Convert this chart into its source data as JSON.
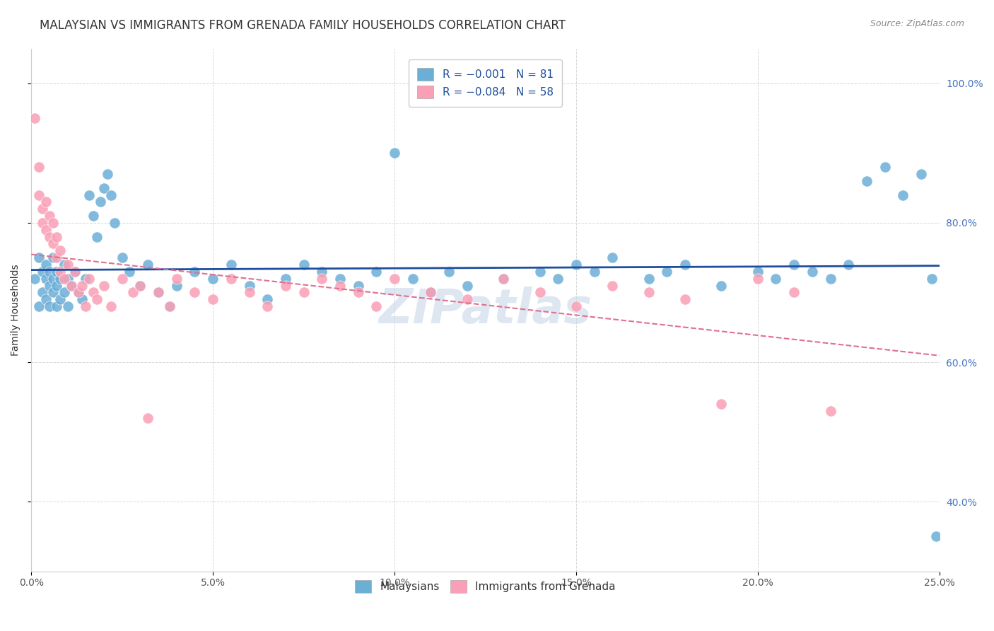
{
  "title": "MALAYSIAN VS IMMIGRANTS FROM GRENADA FAMILY HOUSEHOLDS CORRELATION CHART",
  "source": "Source: ZipAtlas.com",
  "ylabel": "Family Households",
  "xlim": [
    0.0,
    0.25
  ],
  "ylim": [
    0.3,
    1.05
  ],
  "xticks": [
    0.0,
    0.05,
    0.1,
    0.15,
    0.2,
    0.25
  ],
  "yticks": [
    0.4,
    0.6,
    0.8,
    1.0
  ],
  "xtick_labels": [
    "0.0%",
    "5.0%",
    "10.0%",
    "15.0%",
    "20.0%",
    "25.0%"
  ],
  "ytick_labels": [
    "40.0%",
    "60.0%",
    "80.0%",
    "100.0%"
  ],
  "malaysian_x": [
    0.001,
    0.002,
    0.002,
    0.003,
    0.003,
    0.004,
    0.004,
    0.004,
    0.005,
    0.005,
    0.005,
    0.006,
    0.006,
    0.006,
    0.007,
    0.007,
    0.007,
    0.008,
    0.008,
    0.009,
    0.009,
    0.01,
    0.01,
    0.011,
    0.012,
    0.013,
    0.014,
    0.015,
    0.016,
    0.017,
    0.018,
    0.019,
    0.02,
    0.021,
    0.022,
    0.023,
    0.025,
    0.027,
    0.03,
    0.032,
    0.035,
    0.038,
    0.04,
    0.045,
    0.05,
    0.055,
    0.06,
    0.065,
    0.07,
    0.075,
    0.08,
    0.085,
    0.09,
    0.095,
    0.1,
    0.105,
    0.11,
    0.115,
    0.12,
    0.13,
    0.14,
    0.145,
    0.15,
    0.155,
    0.16,
    0.17,
    0.175,
    0.18,
    0.19,
    0.2,
    0.205,
    0.21,
    0.215,
    0.22,
    0.225,
    0.23,
    0.235,
    0.24,
    0.245,
    0.248,
    0.249
  ],
  "malaysian_y": [
    0.72,
    0.68,
    0.75,
    0.7,
    0.73,
    0.69,
    0.72,
    0.74,
    0.71,
    0.68,
    0.73,
    0.7,
    0.72,
    0.75,
    0.68,
    0.71,
    0.73,
    0.69,
    0.72,
    0.7,
    0.74,
    0.68,
    0.72,
    0.71,
    0.73,
    0.7,
    0.69,
    0.72,
    0.84,
    0.81,
    0.78,
    0.83,
    0.85,
    0.87,
    0.84,
    0.8,
    0.75,
    0.73,
    0.71,
    0.74,
    0.7,
    0.68,
    0.71,
    0.73,
    0.72,
    0.74,
    0.71,
    0.69,
    0.72,
    0.74,
    0.73,
    0.72,
    0.71,
    0.73,
    0.9,
    0.72,
    0.7,
    0.73,
    0.71,
    0.72,
    0.73,
    0.72,
    0.74,
    0.73,
    0.75,
    0.72,
    0.73,
    0.74,
    0.71,
    0.73,
    0.72,
    0.74,
    0.73,
    0.72,
    0.74,
    0.86,
    0.88,
    0.84,
    0.87,
    0.72,
    0.35
  ],
  "grenada_x": [
    0.001,
    0.002,
    0.002,
    0.003,
    0.003,
    0.004,
    0.004,
    0.005,
    0.005,
    0.006,
    0.006,
    0.007,
    0.007,
    0.008,
    0.008,
    0.009,
    0.01,
    0.011,
    0.012,
    0.013,
    0.014,
    0.015,
    0.016,
    0.017,
    0.018,
    0.02,
    0.022,
    0.025,
    0.028,
    0.03,
    0.032,
    0.035,
    0.038,
    0.04,
    0.045,
    0.05,
    0.055,
    0.06,
    0.065,
    0.07,
    0.075,
    0.08,
    0.085,
    0.09,
    0.095,
    0.1,
    0.11,
    0.12,
    0.13,
    0.14,
    0.15,
    0.16,
    0.17,
    0.18,
    0.19,
    0.2,
    0.21,
    0.22
  ],
  "grenada_y": [
    0.95,
    0.88,
    0.84,
    0.8,
    0.82,
    0.79,
    0.83,
    0.81,
    0.78,
    0.8,
    0.77,
    0.75,
    0.78,
    0.73,
    0.76,
    0.72,
    0.74,
    0.71,
    0.73,
    0.7,
    0.71,
    0.68,
    0.72,
    0.7,
    0.69,
    0.71,
    0.68,
    0.72,
    0.7,
    0.71,
    0.52,
    0.7,
    0.68,
    0.72,
    0.7,
    0.69,
    0.72,
    0.7,
    0.68,
    0.71,
    0.7,
    0.72,
    0.71,
    0.7,
    0.68,
    0.72,
    0.7,
    0.69,
    0.72,
    0.7,
    0.68,
    0.71,
    0.7,
    0.69,
    0.54,
    0.72,
    0.7,
    0.53
  ],
  "malaysian_color": "#6baed6",
  "grenada_color": "#fa9fb5",
  "malaysian_line_color": "#1f4e9e",
  "grenada_line_color": "#e07090",
  "background_color": "#ffffff",
  "grid_color": "#cccccc",
  "title_fontsize": 12,
  "axis_label_fontsize": 10,
  "tick_fontsize": 10,
  "watermark_text": "ZIPatlas",
  "watermark_color": "#c8d8e8",
  "watermark_fontsize": 48,
  "right_ytick_color": "#4472c4"
}
